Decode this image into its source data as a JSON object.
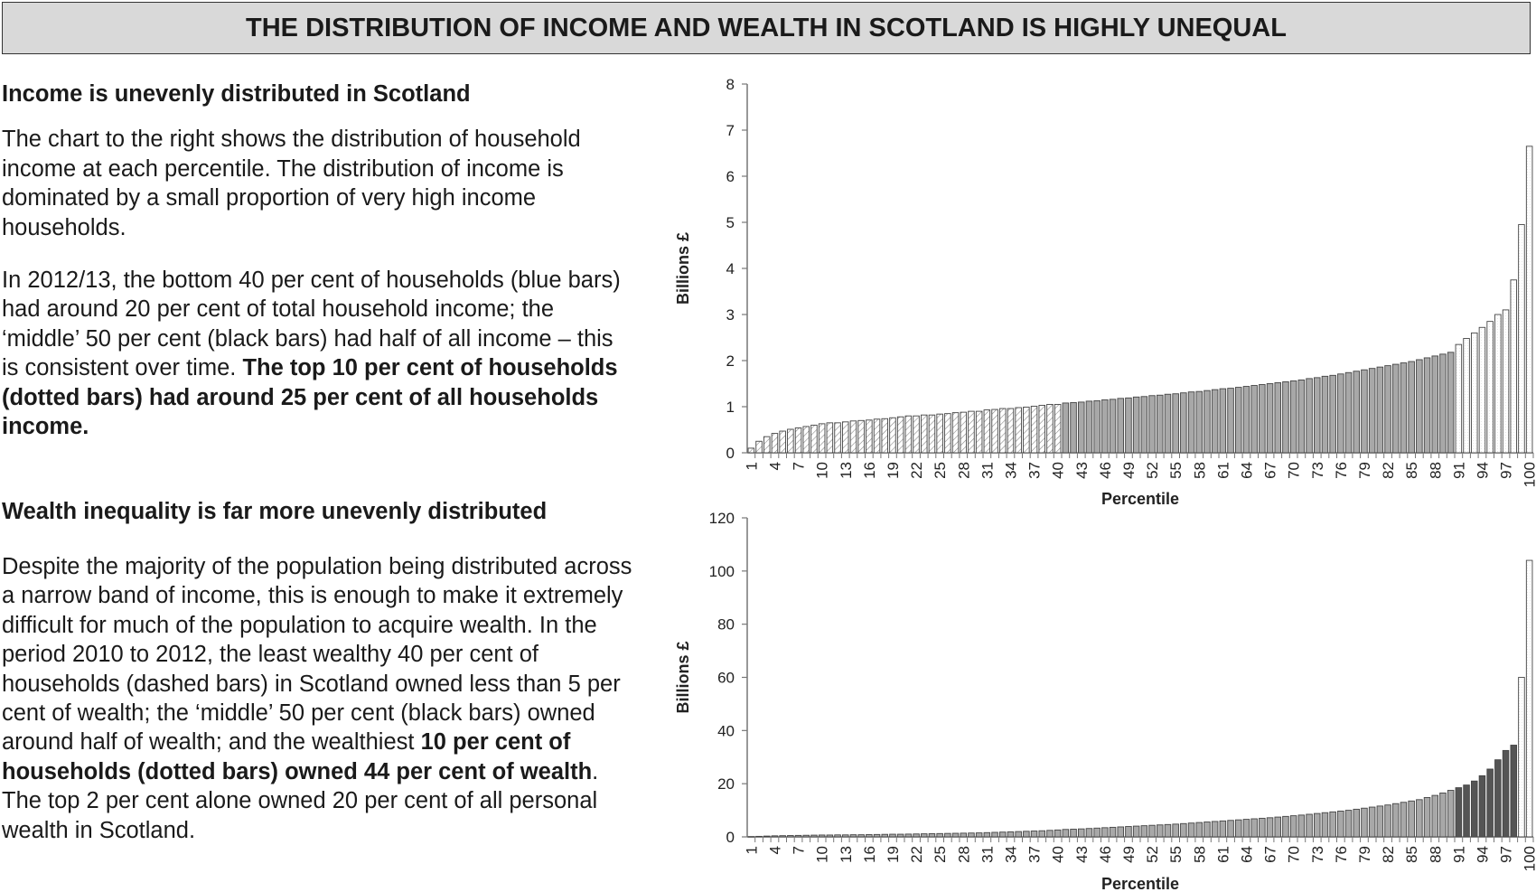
{
  "title": "THE DISTRIBUTION OF INCOME AND WEALTH IN SCOTLAND IS HIGHLY UNEQUAL",
  "income_section": {
    "heading": "Income is unevenly distributed in Scotland",
    "para1": "The chart to the right shows the distribution of household income at each percentile. The distribution of income is dominated by a small proportion of very high income households.",
    "para2_normal": "In 2012/13, the bottom 40 per cent of households (blue bars) had around 20 per cent of total household income; the ‘middle’ 50 per cent (black bars) had half of all income – this is consistent over time. ",
    "para2_bold": "The top 10 per cent of households (dotted bars) had around 25 per cent of all households income."
  },
  "wealth_section": {
    "heading": "Wealth inequality is far more unevenly distributed",
    "para_normal1": "Despite the majority of the population being distributed across a narrow  band of income, this is enough to make it extremely difficult for much of the population to acquire wealth. In the period 2010 to 2012, the least wealthy 40 per cent of households (dashed bars) in Scotland owned less than 5 per cent of wealth; the ‘middle’ 50 per cent (black bars) owned around half of wealth; and the wealthiest ",
    "para_bold": "10 per cent of households (dotted bars) owned 44  per cent of wealth",
    "para_normal2": ". The top 2 per cent alone owned 20 per cent of all personal wealth in Scotland."
  },
  "chart_data": [
    {
      "type": "bar",
      "xlabel": "Percentile",
      "ylabel": "Billions £",
      "ylim": [
        0,
        8
      ],
      "yticks": [
        "0",
        "1",
        "2",
        "3",
        "4",
        "5",
        "6",
        "7",
        "8"
      ],
      "xtick_step": 3,
      "grid": false,
      "fill_groups": [
        {
          "from": 1,
          "to": 40,
          "style": "hatched"
        },
        {
          "from": 41,
          "to": 90,
          "style": "gray",
          "color": "#a8a8a8"
        },
        {
          "from": 91,
          "to": 100,
          "style": "dotted"
        }
      ],
      "values": [
        0.1,
        0.25,
        0.35,
        0.42,
        0.47,
        0.51,
        0.54,
        0.57,
        0.6,
        0.63,
        0.65,
        0.65,
        0.67,
        0.69,
        0.7,
        0.71,
        0.73,
        0.74,
        0.76,
        0.78,
        0.8,
        0.8,
        0.82,
        0.82,
        0.84,
        0.85,
        0.87,
        0.88,
        0.9,
        0.9,
        0.93,
        0.94,
        0.96,
        0.96,
        0.98,
        0.99,
        1.01,
        1.03,
        1.05,
        1.05,
        1.08,
        1.09,
        1.1,
        1.12,
        1.13,
        1.15,
        1.16,
        1.18,
        1.19,
        1.21,
        1.22,
        1.24,
        1.25,
        1.27,
        1.28,
        1.3,
        1.32,
        1.33,
        1.35,
        1.37,
        1.39,
        1.4,
        1.42,
        1.44,
        1.46,
        1.48,
        1.5,
        1.52,
        1.54,
        1.56,
        1.58,
        1.61,
        1.63,
        1.66,
        1.68,
        1.71,
        1.74,
        1.77,
        1.8,
        1.83,
        1.86,
        1.89,
        1.92,
        1.95,
        1.98,
        2.02,
        2.06,
        2.1,
        2.14,
        2.18,
        2.35,
        2.48,
        2.6,
        2.72,
        2.85,
        3.0,
        3.1,
        3.75,
        4.95,
        6.65
      ]
    },
    {
      "type": "bar",
      "xlabel": "Percentile",
      "ylabel": "Billions £",
      "ylim": [
        0,
        120
      ],
      "yticks": [
        "0",
        "20",
        "40",
        "60",
        "80",
        "100",
        "120"
      ],
      "xtick_step": 3,
      "grid": false,
      "fill_groups": [
        {
          "from": 1,
          "to": 90,
          "style": "gray",
          "color": "#a8a8a8"
        },
        {
          "from": 91,
          "to": 98,
          "style": "dark",
          "color": "#555555"
        },
        {
          "from": 99,
          "to": 100,
          "style": "dotted"
        }
      ],
      "values": [
        0.1,
        0.2,
        0.3,
        0.4,
        0.45,
        0.5,
        0.55,
        0.6,
        0.65,
        0.7,
        0.7,
        0.75,
        0.75,
        0.8,
        0.8,
        0.85,
        0.9,
        0.95,
        1.0,
        1.0,
        1.05,
        1.1,
        1.15,
        1.2,
        1.25,
        1.3,
        1.35,
        1.4,
        1.45,
        1.5,
        1.6,
        1.7,
        1.8,
        1.9,
        2.0,
        2.1,
        2.2,
        2.3,
        2.45,
        2.6,
        2.8,
        2.9,
        3.0,
        3.15,
        3.3,
        3.45,
        3.6,
        3.75,
        3.9,
        4.05,
        4.2,
        4.35,
        4.5,
        4.65,
        4.8,
        5.0,
        5.2,
        5.4,
        5.6,
        5.8,
        6.0,
        6.2,
        6.4,
        6.6,
        6.8,
        7.0,
        7.2,
        7.45,
        7.7,
        7.95,
        8.2,
        8.5,
        8.8,
        9.1,
        9.4,
        9.7,
        10.0,
        10.4,
        10.8,
        11.2,
        11.6,
        12.0,
        12.5,
        13.0,
        13.5,
        14.0,
        14.8,
        15.6,
        16.5,
        17.5,
        18.5,
        19.5,
        21,
        23,
        25.5,
        29,
        32.5,
        34.5,
        60,
        104
      ]
    }
  ]
}
